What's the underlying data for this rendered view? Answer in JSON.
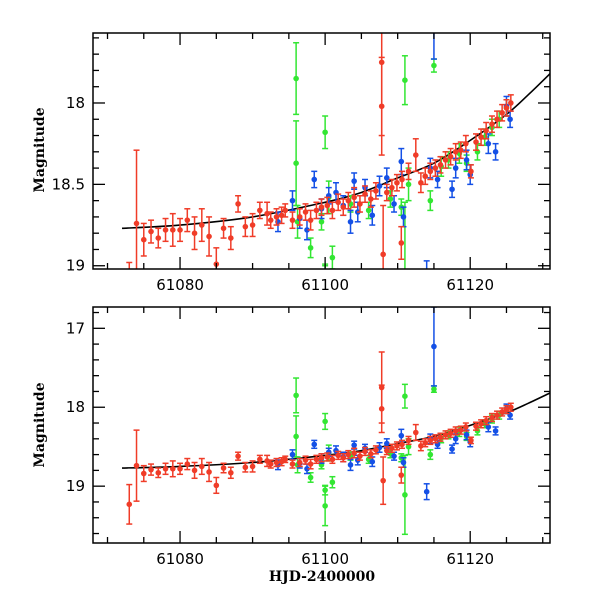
{
  "chart_data": [
    {
      "type": "scatter",
      "panel": "top",
      "title": "",
      "xlabel": "",
      "ylabel": "Magnitude",
      "xlim": [
        61068,
        61131
      ],
      "ylim": [
        19.02,
        17.57
      ],
      "y_inverted": true,
      "xticks_major": [
        61080,
        61100,
        61120
      ],
      "xtick_labels": [
        "61080",
        "61100",
        "61120"
      ],
      "yticks_major": [
        18,
        18.5,
        19
      ],
      "ytick_labels": [
        "18",
        "18.5",
        "19"
      ],
      "grid": false,
      "legend": "none"
    },
    {
      "type": "scatter",
      "panel": "bottom",
      "title": "",
      "xlabel": "HJD-2400000",
      "ylabel": "Magnitude",
      "xlim": [
        61068,
        61131
      ],
      "ylim": [
        19.72,
        16.73
      ],
      "y_inverted": true,
      "xticks_major": [
        61080,
        61100,
        61120
      ],
      "xtick_labels": [
        "61080",
        "61100",
        "61120"
      ],
      "yticks_major": [
        17,
        18,
        19
      ],
      "ytick_labels": [
        "17",
        "18",
        "19"
      ],
      "grid": false,
      "legend": "none"
    }
  ],
  "series": [
    {
      "name": "red",
      "color": "#f03c28",
      "points": [
        [
          61073.0,
          19.23,
          0.25
        ],
        [
          61074.0,
          18.74,
          0.45
        ],
        [
          61075.0,
          18.84,
          0.1
        ],
        [
          61076.0,
          18.79,
          0.07
        ],
        [
          61077.0,
          18.83,
          0.06
        ],
        [
          61078.0,
          18.78,
          0.07
        ],
        [
          61079.0,
          18.78,
          0.1
        ],
        [
          61080.0,
          18.78,
          0.07
        ],
        [
          61081.0,
          18.72,
          0.07
        ],
        [
          61082.0,
          18.8,
          0.1
        ],
        [
          61083.0,
          18.75,
          0.1
        ],
        [
          61084.0,
          18.82,
          0.12
        ],
        [
          61085.0,
          18.99,
          0.1
        ],
        [
          61086.0,
          18.77,
          0.06
        ],
        [
          61087.0,
          18.83,
          0.07
        ],
        [
          61088.0,
          18.62,
          0.05
        ],
        [
          61089.0,
          18.76,
          0.06
        ],
        [
          61090.0,
          18.75,
          0.07
        ],
        [
          61091.0,
          18.66,
          0.05
        ],
        [
          61092.0,
          18.68,
          0.07
        ],
        [
          61092.5,
          18.72,
          0.05
        ],
        [
          61093.3,
          18.7,
          0.05
        ],
        [
          61094.0,
          18.69,
          0.05
        ],
        [
          61094.5,
          18.66,
          0.04
        ],
        [
          61095.5,
          18.72,
          0.05
        ],
        [
          61096.5,
          18.7,
          0.05
        ],
        [
          61097.3,
          18.67,
          0.05
        ],
        [
          61098.0,
          18.72,
          0.06
        ],
        [
          61098.8,
          18.66,
          0.05
        ],
        [
          61099.5,
          18.64,
          0.05
        ],
        [
          61100.3,
          18.63,
          0.05
        ],
        [
          61101.0,
          18.66,
          0.05
        ],
        [
          61101.8,
          18.61,
          0.05
        ],
        [
          61102.5,
          18.64,
          0.05
        ],
        [
          61103.2,
          18.6,
          0.05
        ],
        [
          61104.0,
          18.58,
          0.06
        ],
        [
          61104.8,
          18.62,
          0.05
        ],
        [
          61105.5,
          18.56,
          0.05
        ],
        [
          61106.3,
          18.59,
          0.05
        ],
        [
          61107.0,
          18.54,
          0.05
        ],
        [
          61107.8,
          18.02,
          0.3
        ],
        [
          61107.8,
          17.75,
          0.45
        ],
        [
          61108.0,
          18.93,
          0.3
        ],
        [
          61108.5,
          18.55,
          0.05
        ],
        [
          61109.2,
          18.52,
          0.05
        ],
        [
          61109.9,
          18.49,
          0.05
        ],
        [
          61110.5,
          18.86,
          0.1
        ],
        [
          61110.6,
          18.47,
          0.05
        ],
        [
          61111.5,
          18.42,
          0.05
        ],
        [
          61112.5,
          18.32,
          0.1
        ],
        [
          61113.2,
          18.49,
          0.06
        ],
        [
          61113.8,
          18.45,
          0.05
        ],
        [
          61114.5,
          18.42,
          0.05
        ],
        [
          61115.2,
          18.4,
          0.05
        ],
        [
          61115.9,
          18.38,
          0.05
        ],
        [
          61116.6,
          18.35,
          0.05
        ],
        [
          61117.3,
          18.33,
          0.05
        ],
        [
          61118.0,
          18.3,
          0.05
        ],
        [
          61118.7,
          18.29,
          0.05
        ],
        [
          61119.4,
          18.25,
          0.05
        ],
        [
          61120.1,
          18.42,
          0.04
        ],
        [
          61120.8,
          18.24,
          0.05
        ],
        [
          61121.5,
          18.21,
          0.05
        ],
        [
          61122.2,
          18.17,
          0.05
        ],
        [
          61123.0,
          18.13,
          0.05
        ],
        [
          61123.7,
          18.1,
          0.05
        ],
        [
          61124.4,
          18.06,
          0.05
        ],
        [
          61125.0,
          18.03,
          0.05
        ],
        [
          61125.6,
          18.0,
          0.05
        ]
      ]
    },
    {
      "name": "green",
      "color": "#32e632",
      "points": [
        [
          61096.0,
          17.85,
          0.22
        ],
        [
          61096.0,
          18.37,
          0.26
        ],
        [
          61096.2,
          18.73,
          0.1
        ],
        [
          61098.0,
          18.89,
          0.06
        ],
        [
          61099.5,
          18.73,
          0.05
        ],
        [
          61100.0,
          18.18,
          0.1
        ],
        [
          61100.0,
          19.05,
          0.06
        ],
        [
          61100.0,
          19.25,
          0.25
        ],
        [
          61100.5,
          18.58,
          0.1
        ],
        [
          61101.0,
          18.95,
          0.07
        ],
        [
          61103.5,
          18.62,
          0.05
        ],
        [
          61106.0,
          18.66,
          0.05
        ],
        [
          61109.0,
          18.59,
          0.05
        ],
        [
          61110.5,
          18.64,
          0.05
        ],
        [
          61111.0,
          17.86,
          0.15
        ],
        [
          61111.0,
          19.11,
          0.5
        ],
        [
          61111.5,
          18.5,
          0.1
        ],
        [
          61114.5,
          18.6,
          0.06
        ],
        [
          61115.0,
          17.77,
          0.04
        ],
        [
          61116.0,
          18.39,
          0.06
        ],
        [
          61117.0,
          18.35,
          0.05
        ],
        [
          61118.5,
          18.31,
          0.06
        ],
        [
          61119.5,
          18.37,
          0.05
        ],
        [
          61121.0,
          18.3,
          0.05
        ],
        [
          61122.0,
          18.21,
          0.05
        ],
        [
          61123.0,
          18.15,
          0.05
        ],
        [
          61124.0,
          18.1,
          0.05
        ],
        [
          61125.0,
          18.03,
          0.05
        ]
      ]
    },
    {
      "name": "blue",
      "color": "#1450e6",
      "points": [
        [
          61093.5,
          18.73,
          0.06
        ],
        [
          61095.5,
          18.6,
          0.06
        ],
        [
          61096.5,
          18.71,
          0.06
        ],
        [
          61097.5,
          18.78,
          0.06
        ],
        [
          61098.5,
          18.47,
          0.05
        ],
        [
          61099.5,
          18.65,
          0.06
        ],
        [
          61100.5,
          18.57,
          0.05
        ],
        [
          61101.5,
          18.55,
          0.06
        ],
        [
          61102.5,
          18.63,
          0.06
        ],
        [
          61103.5,
          18.73,
          0.07
        ],
        [
          61104.0,
          18.48,
          0.05
        ],
        [
          61104.5,
          18.67,
          0.06
        ],
        [
          61105.5,
          18.52,
          0.05
        ],
        [
          61106.5,
          18.69,
          0.06
        ],
        [
          61107.5,
          18.51,
          0.06
        ],
        [
          61108.5,
          18.46,
          0.06
        ],
        [
          61109.5,
          18.62,
          0.05
        ],
        [
          61110.5,
          18.36,
          0.08
        ],
        [
          61110.8,
          18.7,
          0.06
        ],
        [
          61114.0,
          19.07,
          0.1
        ],
        [
          61114.5,
          18.4,
          0.06
        ],
        [
          61115.0,
          17.23,
          0.5
        ],
        [
          61115.5,
          18.47,
          0.05
        ],
        [
          61117.5,
          18.53,
          0.05
        ],
        [
          61118.0,
          18.4,
          0.06
        ],
        [
          61119.5,
          18.35,
          0.06
        ],
        [
          61120.0,
          18.44,
          0.06
        ],
        [
          61122.5,
          18.25,
          0.06
        ],
        [
          61123.5,
          18.3,
          0.05
        ],
        [
          61125.0,
          18.02,
          0.06
        ],
        [
          61125.5,
          18.1,
          0.05
        ]
      ]
    }
  ],
  "model_curve": {
    "name": "fit",
    "color": "#000000",
    "points": [
      [
        61072,
        18.77
      ],
      [
        61080,
        18.75
      ],
      [
        61090,
        18.7
      ],
      [
        61100,
        18.61
      ],
      [
        61105,
        18.55
      ],
      [
        61110,
        18.46
      ],
      [
        61115,
        18.37
      ],
      [
        61120,
        18.23
      ],
      [
        61125,
        18.07
      ],
      [
        61128,
        17.95
      ],
      [
        61131,
        17.82
      ]
    ]
  }
}
